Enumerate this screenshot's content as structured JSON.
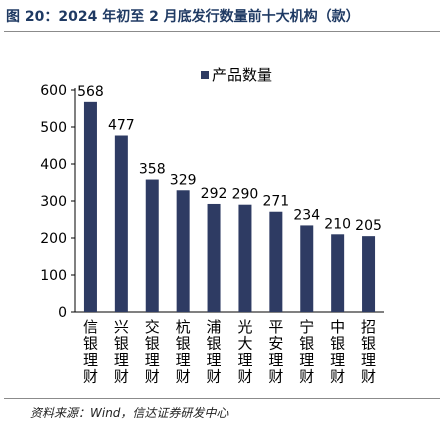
{
  "figure": {
    "title": "图 20：2024 年初至 2 月底发行数量前十大机构（款）",
    "source": "资料来源：Wind，信达证券研发中心"
  },
  "colors": {
    "bar": "#2e3b63",
    "title": "#1f3a63",
    "text": "#000000",
    "axis": "#000000"
  },
  "chart_data": {
    "type": "bar",
    "categories": [
      "信银理财",
      "兴银理财",
      "交银理财",
      "杭银理财",
      "浦银理财",
      "光大理财",
      "平安理财",
      "宁银理财",
      "中银理财",
      "招银理财"
    ],
    "series": [
      {
        "name": "产品数量",
        "values": [
          568,
          477,
          358,
          329,
          292,
          290,
          271,
          234,
          210,
          205
        ]
      }
    ],
    "yticks": [
      0,
      100,
      200,
      300,
      400,
      500,
      600
    ],
    "ylim": [
      0,
      600
    ],
    "grid": false,
    "data_labels": true,
    "legend_position": "top-center"
  }
}
